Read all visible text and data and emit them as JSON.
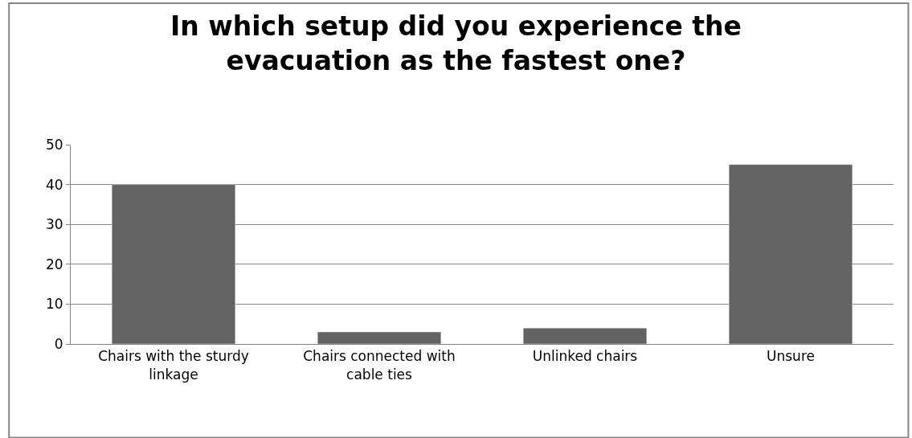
{
  "chart_data": {
    "type": "bar",
    "title": "In which setup did you experience the evacuation as the fastest one?",
    "categories": [
      "Chairs with the sturdy linkage",
      "Chairs connected with cable ties",
      "Unlinked chairs",
      "Unsure"
    ],
    "values": [
      40,
      3,
      4,
      45
    ],
    "color": "#636363",
    "ylim": [
      0,
      50
    ],
    "yticks": [
      0,
      10,
      20,
      30,
      40,
      50
    ],
    "grid": "y",
    "legend": false
  }
}
